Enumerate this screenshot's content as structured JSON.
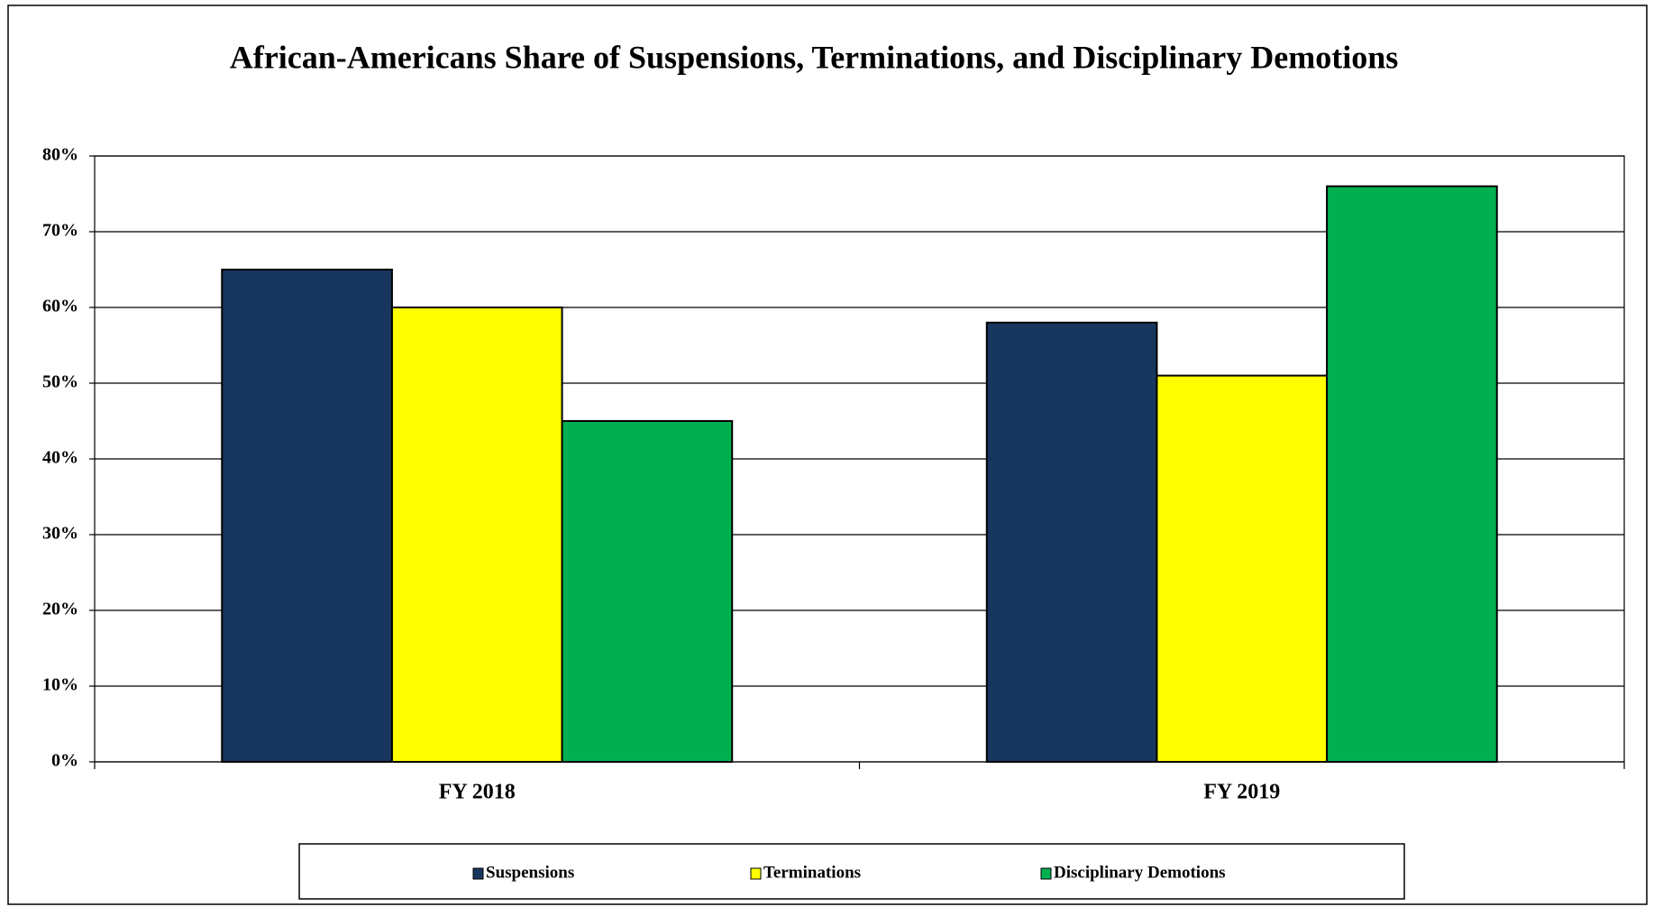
{
  "chart_data": {
    "type": "bar",
    "title": "African-Americans Share of Suspensions, Terminations, and Disciplinary Demotions",
    "categories": [
      "FY 2018",
      "FY 2019"
    ],
    "series": [
      {
        "name": "Suspensions",
        "color": "#17375e",
        "values": [
          65,
          58
        ]
      },
      {
        "name": "Terminations",
        "color": "#ffff00",
        "values": [
          60,
          51
        ]
      },
      {
        "name": "Disciplinary Demotions",
        "color": "#00b050",
        "values": [
          45,
          76
        ]
      }
    ],
    "ylim": [
      0,
      80
    ],
    "yticks": [
      {
        "value": 0,
        "label": "0%"
      },
      {
        "value": 10,
        "label": "10%"
      },
      {
        "value": 20,
        "label": "20%"
      },
      {
        "value": 30,
        "label": "30%"
      },
      {
        "value": 40,
        "label": "40%"
      },
      {
        "value": 50,
        "label": "50%"
      },
      {
        "value": 60,
        "label": "60%"
      },
      {
        "value": 70,
        "label": "70%"
      },
      {
        "value": 80,
        "label": "80%"
      }
    ],
    "grid": true,
    "legend": "bottom"
  }
}
